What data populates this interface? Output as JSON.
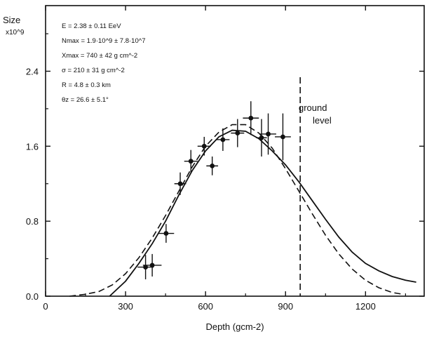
{
  "chart_data": {
    "type": "line",
    "title": "",
    "ylabel": [
      "Size",
      "x10^9"
    ],
    "xlabel": "Depth (gcm-2)",
    "xlim": [
      0,
      1420
    ],
    "ylim": [
      0,
      3.1
    ],
    "x_ticks": [
      0,
      300,
      600,
      900,
      1200
    ],
    "x_tick_labels": [
      "0",
      "300",
      "600",
      "900",
      "1200"
    ],
    "y_ticks": [
      0,
      0.8,
      1.6,
      2.4
    ],
    "y_tick_labels": [
      "0.0",
      "0.8",
      "1.6",
      "2.4"
    ],
    "grid": false,
    "parameters": [
      "E = 2.38 ± 0.11 EeV",
      "Nmax = 1.9·10^9 ± 7.8·10^7",
      "Xmax = 740 ± 42 g cm^-2",
      "σ = 210 ± 31 g cm^-2",
      "R = 4.8 ± 0.3 km",
      "θz = 26.6 ± 5.1°"
    ],
    "annotation": {
      "text": [
        "ground",
        "level"
      ],
      "x": 955
    },
    "series": [
      {
        "style": "solid",
        "x": [
          240,
          300,
          350,
          400,
          450,
          500,
          550,
          600,
          650,
          700,
          750,
          800,
          850,
          900,
          950,
          1000,
          1050,
          1100,
          1150,
          1200,
          1250,
          1300,
          1350,
          1390
        ],
        "y": [
          0.0,
          0.16,
          0.35,
          0.56,
          0.8,
          1.08,
          1.34,
          1.55,
          1.7,
          1.77,
          1.76,
          1.68,
          1.55,
          1.4,
          1.22,
          1.02,
          0.82,
          0.63,
          0.47,
          0.35,
          0.27,
          0.21,
          0.17,
          0.15
        ]
      },
      {
        "style": "dashed",
        "x": [
          90,
          150,
          200,
          250,
          300,
          350,
          400,
          450,
          500,
          550,
          600,
          650,
          700,
          750,
          800,
          850,
          900,
          950,
          1000,
          1050,
          1100,
          1150,
          1200,
          1250,
          1300,
          1340
        ],
        "y": [
          0.0,
          0.02,
          0.05,
          0.12,
          0.24,
          0.41,
          0.62,
          0.86,
          1.12,
          1.38,
          1.6,
          1.75,
          1.83,
          1.83,
          1.74,
          1.58,
          1.36,
          1.12,
          0.88,
          0.65,
          0.45,
          0.29,
          0.17,
          0.09,
          0.04,
          0.02
        ]
      },
      {
        "style": "error-points",
        "points": [
          {
            "x": 375,
            "y": 0.31,
            "xerr": 30,
            "yerr": 0.13
          },
          {
            "x": 400,
            "y": 0.33,
            "xerr": 35,
            "yerr": 0.12
          },
          {
            "x": 452,
            "y": 0.67,
            "xerr": 30,
            "yerr": 0.1
          },
          {
            "x": 505,
            "y": 1.2,
            "xerr": 22,
            "yerr": 0.12
          },
          {
            "x": 545,
            "y": 1.44,
            "xerr": 25,
            "yerr": 0.12
          },
          {
            "x": 595,
            "y": 1.6,
            "xerr": 25,
            "yerr": 0.1
          },
          {
            "x": 625,
            "y": 1.39,
            "xerr": 22,
            "yerr": 0.1
          },
          {
            "x": 665,
            "y": 1.67,
            "xerr": 25,
            "yerr": 0.12
          },
          {
            "x": 720,
            "y": 1.74,
            "xerr": 25,
            "yerr": 0.15
          },
          {
            "x": 770,
            "y": 1.9,
            "xerr": 30,
            "yerr": 0.18
          },
          {
            "x": 810,
            "y": 1.69,
            "xerr": 20,
            "yerr": 0.2
          },
          {
            "x": 835,
            "y": 1.73,
            "xerr": 30,
            "yerr": 0.22
          },
          {
            "x": 890,
            "y": 1.7,
            "xerr": 30,
            "yerr": 0.25
          }
        ]
      }
    ]
  }
}
